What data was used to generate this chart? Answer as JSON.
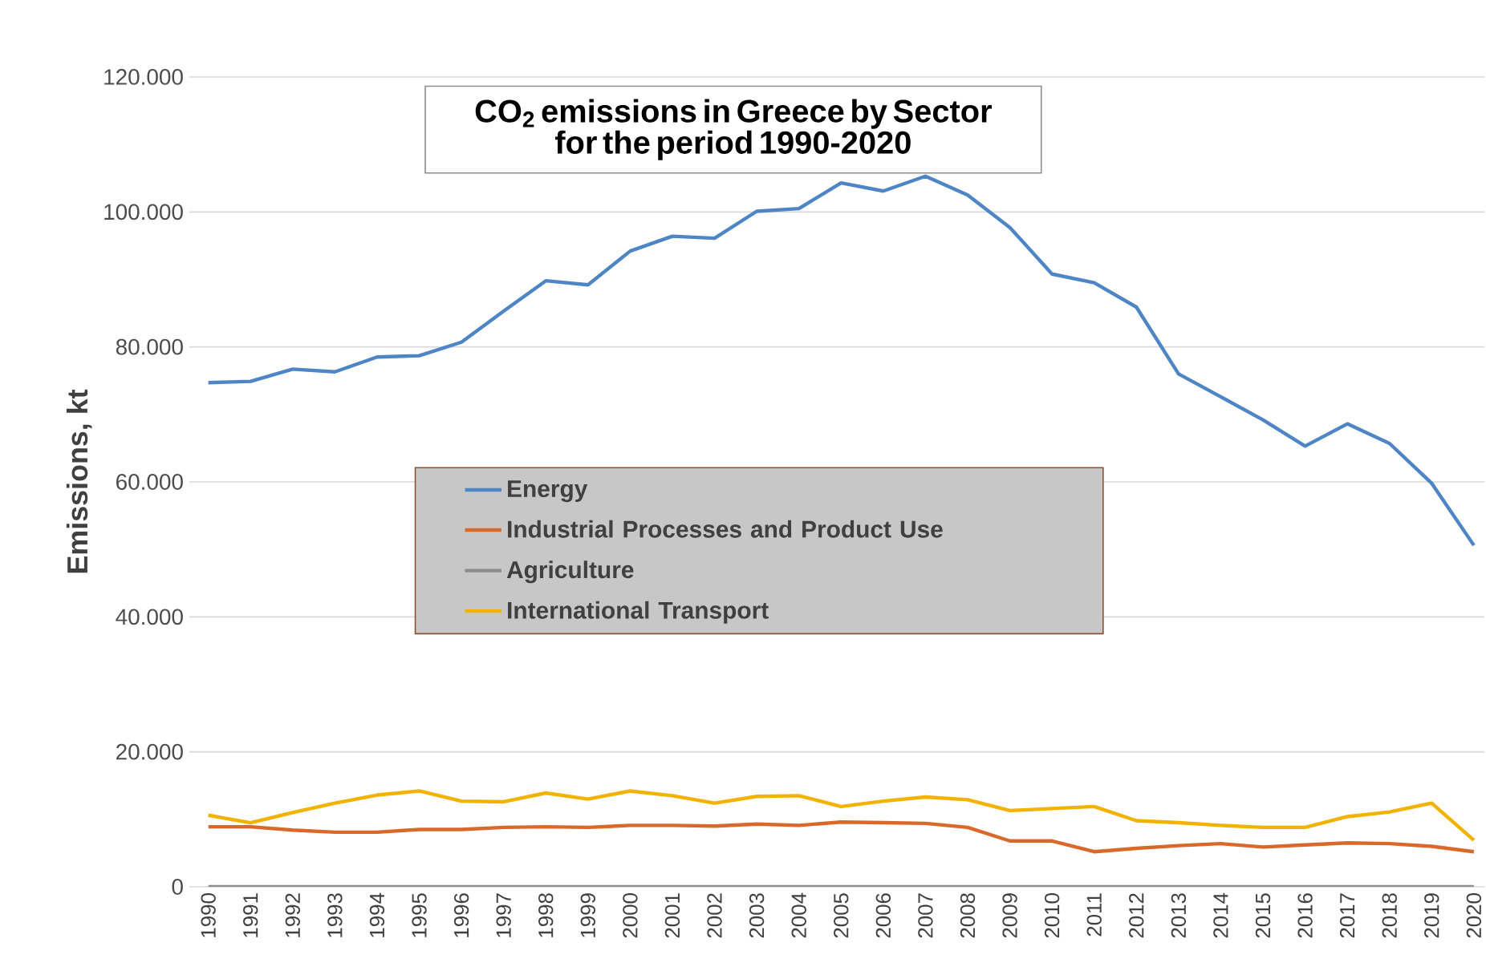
{
  "chart_data": {
    "type": "line",
    "title": "CO$_{2}$ emissions in Greece by Sector",
    "subtitle": "for the period 1990-2020",
    "ylabel": "Emissions, kt",
    "categories": [
      "1990",
      "1991",
      "1992",
      "1993",
      "1994",
      "1995",
      "1996",
      "1997",
      "1998",
      "1999",
      "2000",
      "2001",
      "2002",
      "2003",
      "2004",
      "2005",
      "2006",
      "2007",
      "2008",
      "2009",
      "2010",
      "2011",
      "2012",
      "2013",
      "2014",
      "2015",
      "2016",
      "2017",
      "2018",
      "2019",
      "2020"
    ],
    "series": [
      {
        "name": "Energy",
        "color": "#4e85c5",
        "values": [
          74700,
          74900,
          76700,
          76300,
          78500,
          78700,
          80700,
          85300,
          89800,
          89200,
          94200,
          96400,
          96100,
          100100,
          100500,
          104300,
          103100,
          105300,
          102500,
          97700,
          90800,
          89500,
          85900,
          76000,
          72600,
          69200,
          65300,
          68600,
          65700,
          59800,
          50600
        ]
      },
      {
        "name": "Industrial Processes and Product Use",
        "color": "#d9692b",
        "values": [
          8900,
          8900,
          8400,
          8100,
          8100,
          8500,
          8500,
          8800,
          8900,
          8800,
          9100,
          9100,
          9000,
          9300,
          9100,
          9600,
          9500,
          9400,
          8800,
          6800,
          6800,
          5200,
          5700,
          6100,
          6400,
          5900,
          6200,
          6500,
          6400,
          6000,
          5200
        ]
      },
      {
        "name": "Agriculture",
        "color": "#8c8c8c",
        "values": [
          0,
          0,
          0,
          0,
          0,
          0,
          0,
          0,
          0,
          0,
          0,
          0,
          0,
          0,
          0,
          0,
          0,
          0,
          0,
          0,
          0,
          0,
          0,
          0,
          0,
          0,
          0,
          0,
          0,
          0,
          0
        ]
      },
      {
        "name": "International Transport",
        "color": "#f2b200",
        "values": [
          10600,
          9500,
          11000,
          12400,
          13600,
          14200,
          12700,
          12600,
          13900,
          13000,
          14200,
          13500,
          12400,
          13400,
          13500,
          11900,
          12700,
          13300,
          12900,
          11300,
          11600,
          11900,
          9800,
          9500,
          9100,
          8800,
          8800,
          10400,
          11100,
          12400,
          6900
        ]
      }
    ],
    "ylim": [
      0,
      120000
    ],
    "yticks": [
      {
        "value": 0,
        "label": "0"
      },
      {
        "value": 20000,
        "label": "20.000"
      },
      {
        "value": 40000,
        "label": "40.000"
      },
      {
        "value": 60000,
        "label": "60.000"
      },
      {
        "value": 80000,
        "label": "80.000"
      },
      {
        "value": 100000,
        "label": "100.000"
      },
      {
        "value": 120000,
        "label": "120.000"
      }
    ],
    "grid": "y",
    "legend": "center",
    "marker": "none",
    "line_style": "solid"
  }
}
